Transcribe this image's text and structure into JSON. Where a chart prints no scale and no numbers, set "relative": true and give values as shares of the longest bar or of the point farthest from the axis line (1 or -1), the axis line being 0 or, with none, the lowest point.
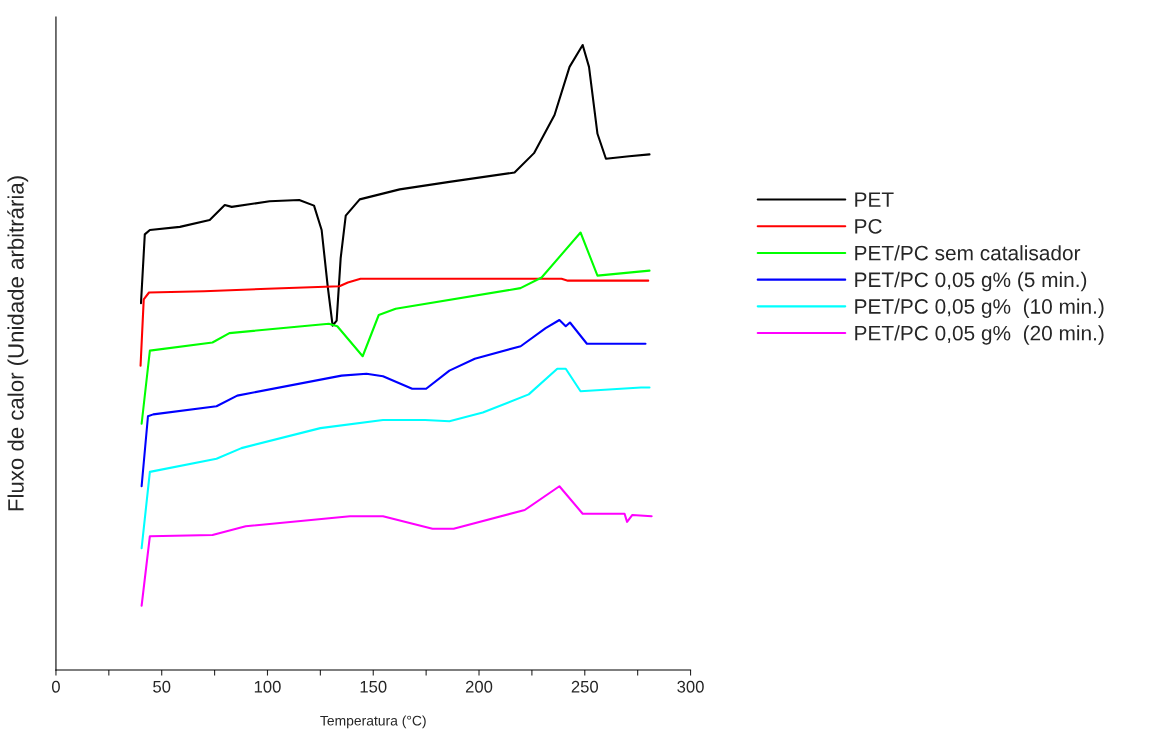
{
  "chart_data": {
    "type": "line",
    "relative": true,
    "xlabel": "Temperatura (°C)",
    "ylabel": "Fluxo de calor (Unidade arbitrária)",
    "xlim": [
      0,
      300
    ],
    "xticks": [
      0,
      {
        "value": 25,
        "label": null
      },
      50,
      {
        "value": 75,
        "label": null
      },
      100,
      {
        "value": 125,
        "label": null
      },
      150,
      {
        "value": 175,
        "label": null
      },
      200,
      {
        "value": 225,
        "label": null
      },
      250,
      {
        "value": 275,
        "label": null
      },
      300
    ],
    "grid": false,
    "legend": "right",
    "line_style": "solid",
    "marker": "none",
    "tick_labels": "x",
    "series": [
      {
        "name": "PET",
        "color": "#000000",
        "x": [
          40.2,
          42,
          44.4,
          58.6,
          72.7,
          79.8,
          83.1,
          101,
          115,
          122,
          125.6,
          128.5,
          130.8,
          132.7,
          134.6,
          137,
          143.6,
          162.5,
          186,
          216.8,
          226,
          235.7,
          242.8,
          249,
          252,
          256,
          260,
          271,
          280.6
        ],
        "values": [
          0.587,
          0.697,
          0.704,
          0.709,
          0.72,
          0.744,
          0.741,
          0.75,
          0.752,
          0.743,
          0.704,
          0.613,
          0.551,
          0.559,
          0.659,
          0.727,
          0.753,
          0.769,
          0.781,
          0.796,
          0.827,
          0.888,
          0.965,
          1.0,
          0.965,
          0.858,
          0.818,
          0.822,
          0.825
        ]
      },
      {
        "name": "PC",
        "color": "#ff0000",
        "x": [
          40,
          41.5,
          44,
          70,
          100,
          134,
          138,
          144,
          200,
          239,
          242,
          280
        ],
        "values": [
          0.487,
          0.593,
          0.604,
          0.606,
          0.61,
          0.614,
          0.62,
          0.626,
          0.626,
          0.626,
          0.623,
          0.623
        ]
      },
      {
        "name": "PET/PC sem catalisador",
        "color": "#00ff00",
        "x": [
          40.5,
          44.4,
          74,
          82,
          129,
          133,
          145,
          152.6,
          160.6,
          219.6,
          229.6,
          248,
          256,
          280.6
        ],
        "values": [
          0.394,
          0.511,
          0.524,
          0.539,
          0.554,
          0.55,
          0.502,
          0.568,
          0.578,
          0.611,
          0.628,
          0.7,
          0.631,
          0.639
        ]
      },
      {
        "name": "PET/PC 0,05 g% (5 min.)",
        "color": "#0000ff",
        "x": [
          40.5,
          43.5,
          46,
          75.9,
          85.7,
          135,
          146.8,
          154.6,
          168.4,
          175,
          186,
          198,
          219.7,
          231.5,
          238,
          241,
          243,
          251,
          278.7
        ],
        "values": [
          0.294,
          0.406,
          0.409,
          0.422,
          0.439,
          0.471,
          0.474,
          0.47,
          0.45,
          0.45,
          0.479,
          0.498,
          0.518,
          0.547,
          0.56,
          0.55,
          0.556,
          0.522,
          0.522
        ]
      },
      {
        "name": "PET/PC 0,05 g%  (10 min.)",
        "color": "#00ffff",
        "x": [
          40.5,
          44.4,
          75.9,
          87.7,
          125,
          154.6,
          174.5,
          186,
          201.8,
          223.5,
          237,
          241,
          248,
          276.6,
          280.6
        ],
        "values": [
          0.195,
          0.317,
          0.338,
          0.355,
          0.387,
          0.4,
          0.4,
          0.398,
          0.412,
          0.441,
          0.482,
          0.482,
          0.446,
          0.452,
          0.452
        ]
      },
      {
        "name": "PET/PC 0,05 g%  (20 min.)",
        "color": "#ff00ff",
        "x": [
          40.5,
          44.4,
          74,
          89.7,
          139,
          154.6,
          178,
          188,
          221.6,
          238,
          249,
          268.8,
          270,
          272.5,
          281.6
        ],
        "values": [
          0.103,
          0.214,
          0.216,
          0.23,
          0.246,
          0.246,
          0.226,
          0.226,
          0.256,
          0.294,
          0.25,
          0.25,
          0.237,
          0.248,
          0.246
        ]
      }
    ]
  }
}
